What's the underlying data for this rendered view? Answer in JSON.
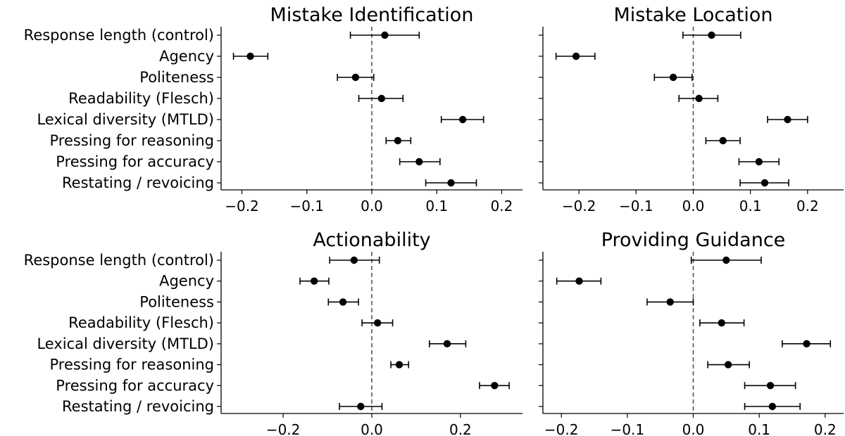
{
  "chart_data": [
    {
      "type": "scatter",
      "title": "Mistake Identification",
      "categories": [
        "Response length (control)",
        "Agency",
        "Politeness",
        "Readability (Flesch)",
        "Lexical diversity (MTLD)",
        "Pressing for reasoning",
        "Pressing for accuracy",
        "Restating / revoicing"
      ],
      "estimates": [
        0.02,
        -0.187,
        -0.025,
        0.015,
        0.14,
        0.04,
        0.073,
        0.122
      ],
      "ci_low": [
        -0.033,
        -0.213,
        -0.053,
        -0.02,
        0.107,
        0.022,
        0.043,
        0.083
      ],
      "ci_high": [
        0.073,
        -0.16,
        0.003,
        0.048,
        0.172,
        0.06,
        0.105,
        0.161
      ],
      "xlim": [
        -0.232,
        0.232
      ],
      "xticks": [
        -0.2,
        -0.1,
        0.0,
        0.1,
        0.2
      ],
      "xtick_labels": [
        "−0.2",
        "−0.1",
        "0.0",
        "0.1",
        "0.2"
      ],
      "reference_line": 0.0,
      "show_category_labels": true
    },
    {
      "type": "scatter",
      "title": "Mistake Location",
      "categories": [
        "Response length (control)",
        "Agency",
        "Politeness",
        "Readability (Flesch)",
        "Lexical diversity (MTLD)",
        "Pressing for reasoning",
        "Pressing for accuracy",
        "Restating / revoicing"
      ],
      "estimates": [
        0.032,
        -0.205,
        -0.035,
        0.01,
        0.165,
        0.052,
        0.115,
        0.125
      ],
      "ci_low": [
        -0.018,
        -0.24,
        -0.068,
        -0.025,
        0.13,
        0.022,
        0.08,
        0.082
      ],
      "ci_high": [
        0.083,
        -0.172,
        -0.002,
        0.043,
        0.2,
        0.082,
        0.15,
        0.167
      ],
      "xlim": [
        -0.263,
        0.263
      ],
      "xticks": [
        -0.2,
        -0.1,
        0.0,
        0.1,
        0.2
      ],
      "xtick_labels": [
        "−0.2",
        "−0.1",
        "0.0",
        "0.1",
        "0.2"
      ],
      "reference_line": 0.0,
      "show_category_labels": false
    },
    {
      "type": "scatter",
      "title": "Actionability",
      "categories": [
        "Response length (control)",
        "Agency",
        "Politeness",
        "Readability (Flesch)",
        "Lexical diversity (MTLD)",
        "Pressing for reasoning",
        "Pressing for accuracy",
        "Restating / revoicing"
      ],
      "estimates": [
        -0.04,
        -0.13,
        -0.065,
        0.013,
        0.17,
        0.062,
        0.277,
        -0.025
      ],
      "ci_low": [
        -0.095,
        -0.162,
        -0.098,
        -0.022,
        0.13,
        0.043,
        0.243,
        -0.073
      ],
      "ci_high": [
        0.017,
        -0.097,
        -0.03,
        0.047,
        0.212,
        0.083,
        0.31,
        0.023
      ],
      "xlim": [
        -0.34,
        0.34
      ],
      "xticks": [
        -0.2,
        0.0,
        0.2
      ],
      "xtick_labels": [
        "−0.2",
        "0.0",
        "0.2"
      ],
      "reference_line": 0.0,
      "show_category_labels": true
    },
    {
      "type": "scatter",
      "title": "Providing Guidance",
      "categories": [
        "Response length (control)",
        "Agency",
        "Politeness",
        "Readability (Flesch)",
        "Lexical diversity (MTLD)",
        "Pressing for reasoning",
        "Pressing for accuracy",
        "Restating / revoicing"
      ],
      "estimates": [
        0.05,
        -0.173,
        -0.035,
        0.043,
        0.172,
        0.053,
        0.117,
        0.12
      ],
      "ci_low": [
        -0.003,
        -0.207,
        -0.07,
        0.01,
        0.135,
        0.022,
        0.078,
        0.078
      ],
      "ci_high": [
        0.103,
        -0.14,
        0.0,
        0.077,
        0.208,
        0.085,
        0.155,
        0.162
      ],
      "xlim": [
        -0.228,
        0.228
      ],
      "xticks": [
        -0.2,
        -0.1,
        0.0,
        0.1,
        0.2
      ],
      "xtick_labels": [
        "−0.2",
        "−0.1",
        "0.0",
        "0.1",
        "0.2"
      ],
      "reference_line": 0.0,
      "show_category_labels": false
    }
  ]
}
